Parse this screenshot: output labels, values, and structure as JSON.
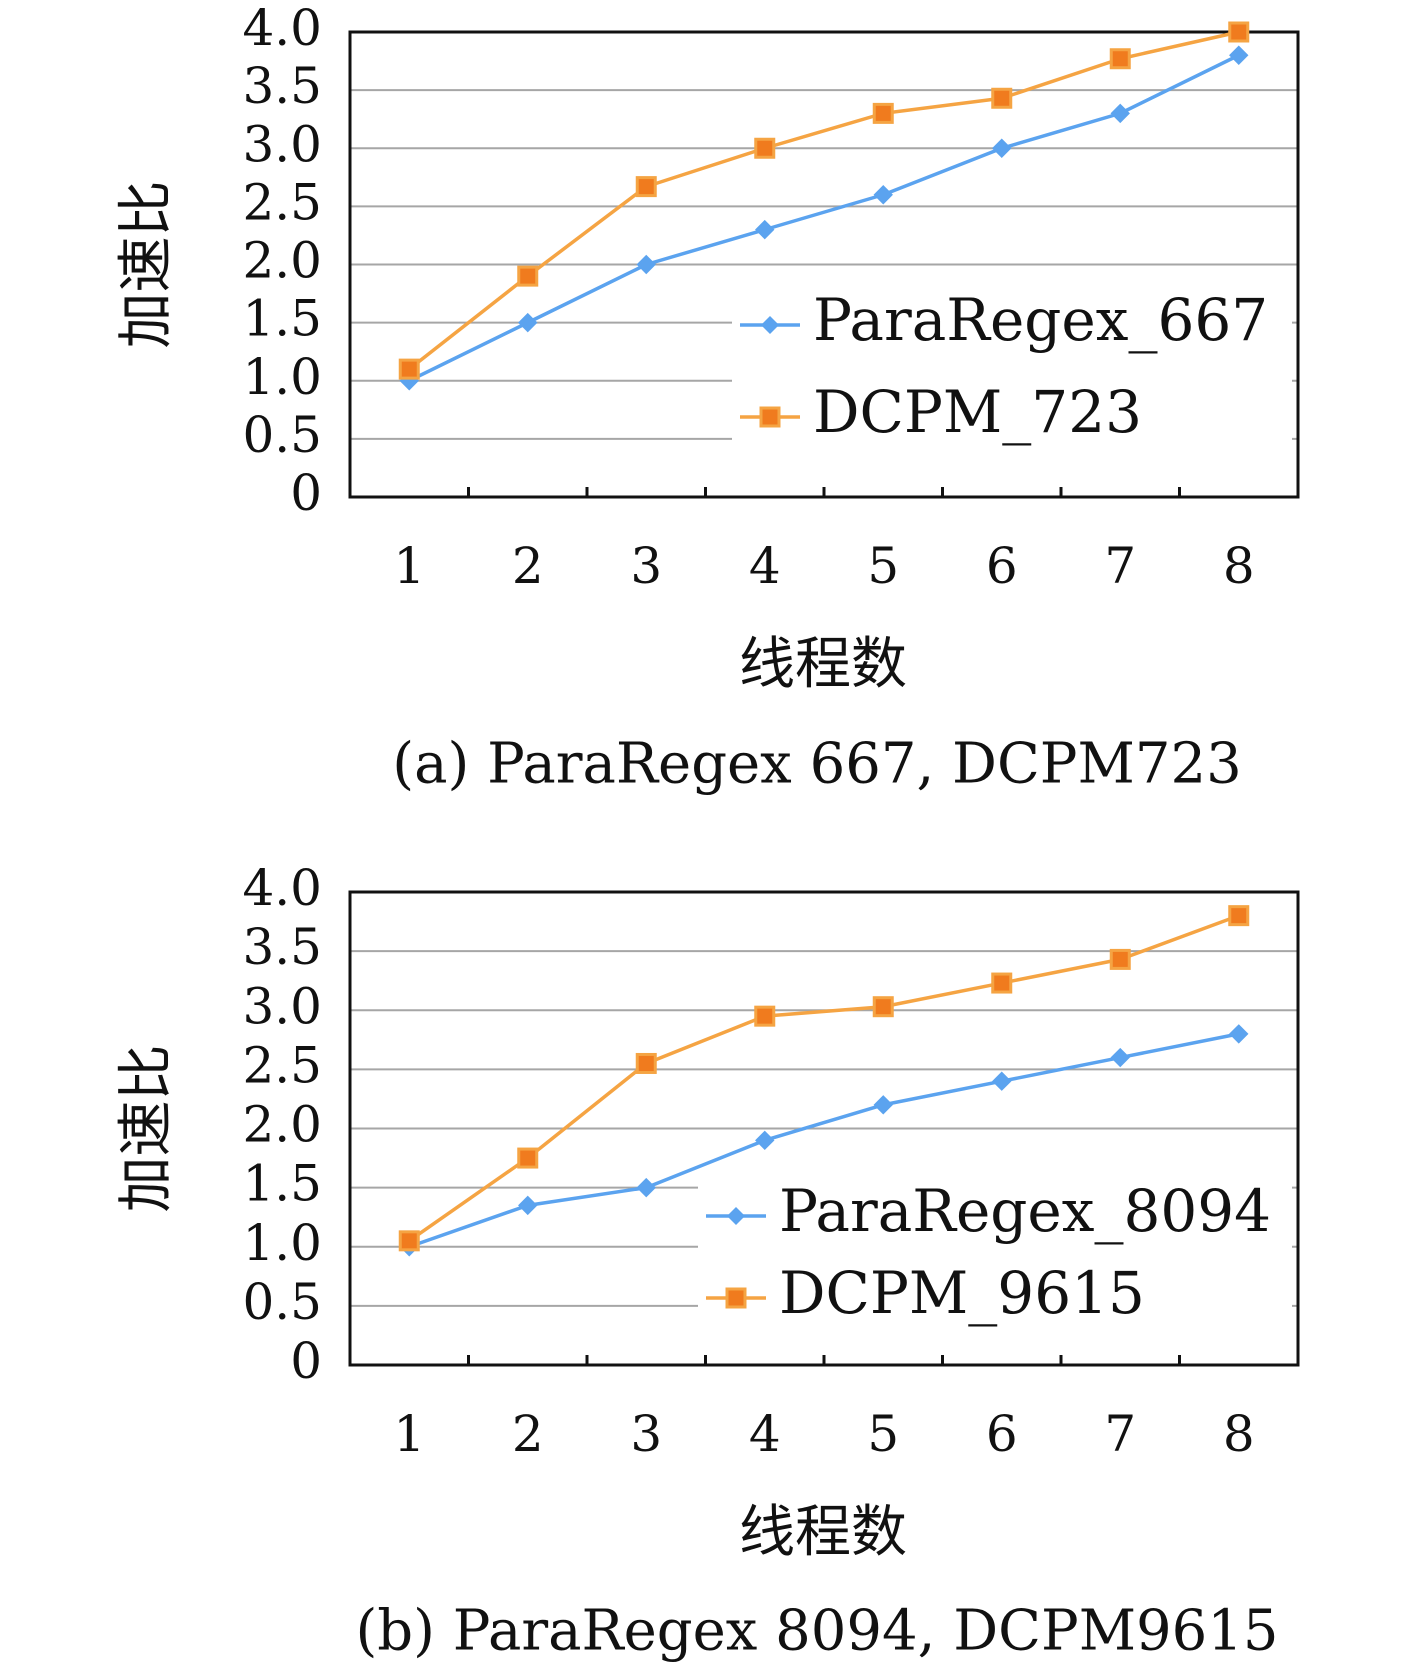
{
  "chart_data": [
    {
      "type": "line",
      "caption": "(a) ParaRegex 667, DCPM723",
      "xlabel": "线程数",
      "ylabel": "加速比",
      "categories": [
        "1",
        "2",
        "3",
        "4",
        "5",
        "6",
        "7",
        "8"
      ],
      "yticks": [
        "0",
        "0.5",
        "1.0",
        "1.5",
        "2.0",
        "2.5",
        "3.0",
        "3.5",
        "4.0"
      ],
      "ylim": [
        0,
        4.0
      ],
      "grid": true,
      "legend_position": "right",
      "series": [
        {
          "name": "ParaRegex_667",
          "color": "#5ba3ef",
          "marker": "diamond",
          "values": [
            1.0,
            1.5,
            2.0,
            2.3,
            2.6,
            3.0,
            3.3,
            3.8
          ]
        },
        {
          "name": "DCPM_723",
          "color": "#f5a443",
          "marker": "square",
          "values": [
            1.1,
            1.9,
            2.67,
            3.0,
            3.3,
            3.43,
            3.77,
            4.0
          ]
        }
      ]
    },
    {
      "type": "line",
      "caption": "(b) ParaRegex 8094, DCPM9615",
      "xlabel": "线程数",
      "ylabel": "加速比",
      "categories": [
        "1",
        "2",
        "3",
        "4",
        "5",
        "6",
        "7",
        "8"
      ],
      "yticks": [
        "0",
        "0.5",
        "1.0",
        "1.5",
        "2.0",
        "2.5",
        "3.0",
        "3.5",
        "4.0"
      ],
      "ylim": [
        0,
        4.0
      ],
      "grid": true,
      "legend_position": "right",
      "series": [
        {
          "name": "ParaRegex_8094",
          "color": "#5ba3ef",
          "marker": "diamond",
          "values": [
            1.0,
            1.35,
            1.5,
            1.9,
            2.2,
            2.4,
            2.6,
            2.8
          ]
        },
        {
          "name": "DCPM_9615",
          "color": "#f5a443",
          "marker": "square",
          "values": [
            1.05,
            1.75,
            2.55,
            2.95,
            3.03,
            3.23,
            3.43,
            3.8
          ]
        }
      ]
    }
  ]
}
